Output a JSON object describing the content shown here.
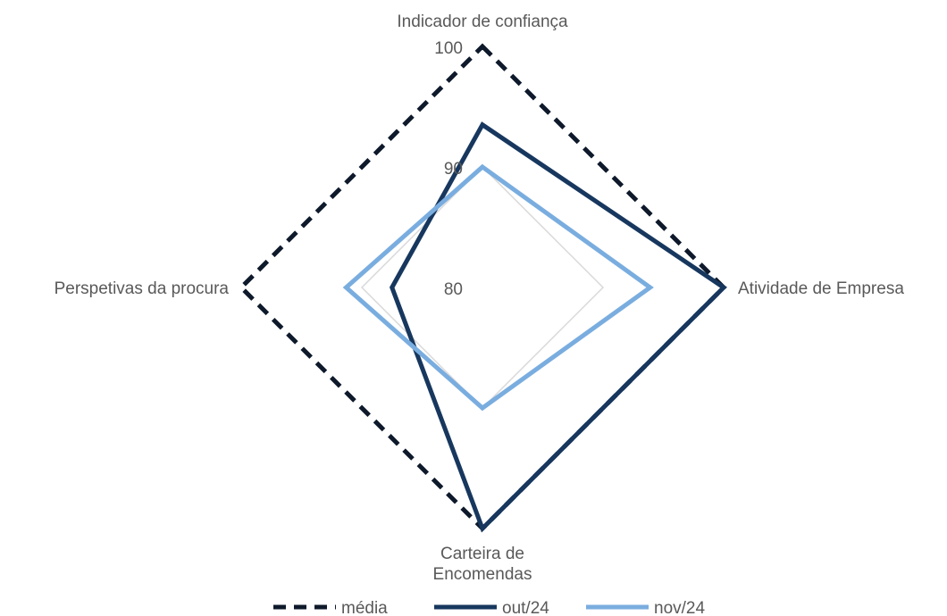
{
  "chart_data": {
    "type": "radar",
    "axes": [
      {
        "label_lines": [
          "Indicador de confiança"
        ]
      },
      {
        "label_lines": [
          "Atividade de Empresa"
        ]
      },
      {
        "label_lines": [
          "Carteira de",
          "Encomendas"
        ]
      },
      {
        "label_lines": [
          "Perspetivas da procura"
        ]
      }
    ],
    "r_ticks": [
      80,
      90,
      100
    ],
    "r_range": [
      80,
      100
    ],
    "gridlines": [
      90
    ],
    "series": [
      {
        "name": "média",
        "values": [
          100,
          100,
          100,
          100
        ],
        "color": "#0e1a2b",
        "style": "dashed"
      },
      {
        "name": "out/24",
        "values": [
          93.5,
          100,
          100,
          87.5
        ],
        "color": "#17375e",
        "style": "solid"
      },
      {
        "name": "nov/24",
        "values": [
          90,
          93.9,
          90,
          91.3
        ],
        "color": "#7aaddf",
        "style": "solid"
      }
    ],
    "legend_position": "bottom"
  }
}
